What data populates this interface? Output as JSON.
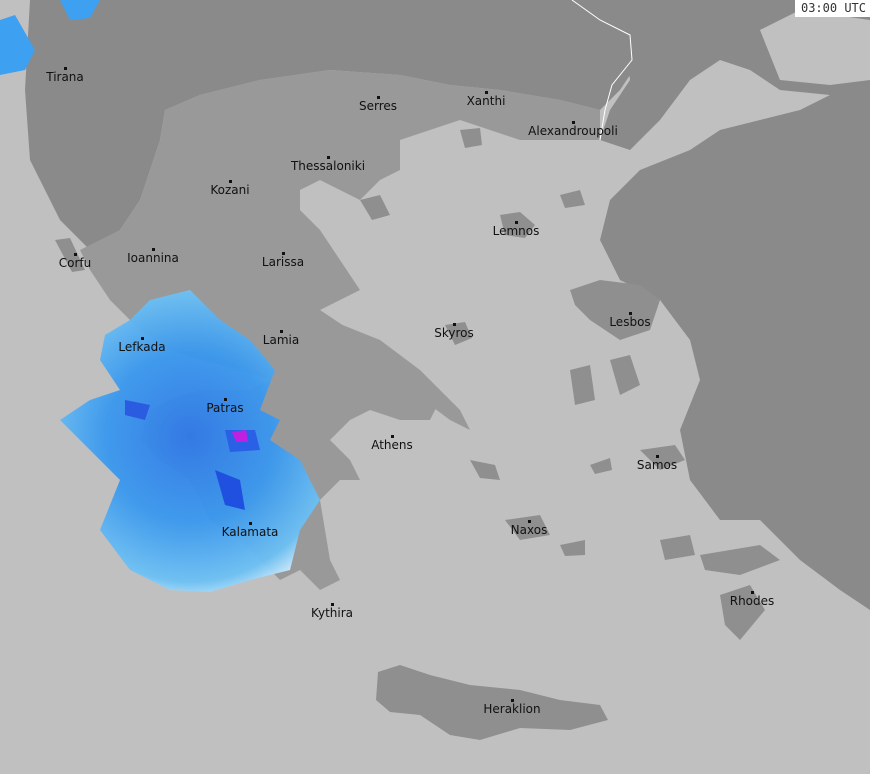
{
  "timestamp": "03:00 UTC",
  "colors": {
    "sea": "#c0c0c0",
    "land_greece": "#999999",
    "land_foreign": "#8a8a8a",
    "radar_light": "#bfe8ff",
    "radar_mid": "#3ea0f0",
    "radar_heavy": "#2050e0",
    "radar_peak": "#c020e0"
  },
  "cities": [
    {
      "name": "Tirana"
    },
    {
      "name": "Serres"
    },
    {
      "name": "Xanthi"
    },
    {
      "name": "Alexandroupoli"
    },
    {
      "name": "Thessaloniki"
    },
    {
      "name": "Kozani"
    },
    {
      "name": "Lemnos"
    },
    {
      "name": "Corfu"
    },
    {
      "name": "Ioannina"
    },
    {
      "name": "Larissa"
    },
    {
      "name": "Skyros"
    },
    {
      "name": "Lesbos"
    },
    {
      "name": "Lefkada"
    },
    {
      "name": "Lamia"
    },
    {
      "name": "Patras"
    },
    {
      "name": "Athens"
    },
    {
      "name": "Samos"
    },
    {
      "name": "Kalamata"
    },
    {
      "name": "Naxos"
    },
    {
      "name": "Kythira"
    },
    {
      "name": "Rhodes"
    },
    {
      "name": "Heraklion"
    }
  ]
}
